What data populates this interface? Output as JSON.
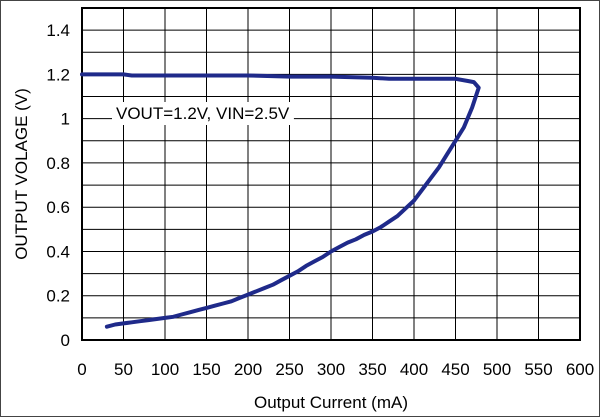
{
  "chart_data": {
    "type": "line",
    "title": "",
    "xlabel": "Output Current (mA)",
    "ylabel": "OUTPUT VOLAGE (V)",
    "xlim": [
      0,
      600
    ],
    "ylim": [
      0,
      1.5
    ],
    "x_ticks": [
      0,
      50,
      100,
      150,
      200,
      250,
      300,
      350,
      400,
      450,
      500,
      550,
      600
    ],
    "y_ticks": [
      0,
      0.2,
      0.4,
      0.6,
      0.8,
      1,
      1.2,
      1.4
    ],
    "y_tick_labels": [
      "0",
      "0.2",
      "0.4",
      "0.6",
      "0.8",
      "1",
      "1.2",
      "1.4"
    ],
    "grid": true,
    "annotation": "VOUT=1.2V, VIN=2.5V",
    "series_color": "#1f2a8a",
    "series": [
      {
        "x": [
          0,
          50,
          60,
          100,
          200,
          250,
          300,
          350,
          370,
          400,
          450,
          465,
          472,
          478,
          470,
          460,
          450,
          440,
          430,
          420,
          410,
          400,
          390,
          380,
          370,
          360,
          350,
          340,
          330,
          320,
          310,
          300,
          290,
          280,
          270,
          260,
          250,
          240,
          230,
          220,
          210,
          200,
          190,
          180,
          170,
          160,
          150,
          140,
          130,
          120,
          110,
          100,
          90,
          80,
          70,
          60,
          50,
          40,
          30
        ],
        "y": [
          1.2,
          1.2,
          1.195,
          1.195,
          1.195,
          1.19,
          1.19,
          1.185,
          1.18,
          1.18,
          1.18,
          1.17,
          1.165,
          1.14,
          1.05,
          0.96,
          0.9,
          0.84,
          0.78,
          0.73,
          0.68,
          0.63,
          0.595,
          0.56,
          0.535,
          0.51,
          0.49,
          0.475,
          0.455,
          0.44,
          0.42,
          0.4,
          0.375,
          0.355,
          0.335,
          0.31,
          0.29,
          0.27,
          0.25,
          0.235,
          0.22,
          0.205,
          0.19,
          0.175,
          0.165,
          0.155,
          0.145,
          0.135,
          0.125,
          0.115,
          0.105,
          0.1,
          0.095,
          0.09,
          0.085,
          0.08,
          0.075,
          0.07,
          0.06
        ]
      }
    ]
  }
}
